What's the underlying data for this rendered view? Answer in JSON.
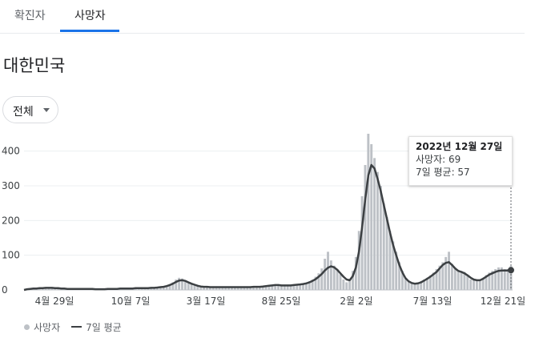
{
  "tabs": [
    {
      "label": "확진자",
      "active": false
    },
    {
      "label": "사망자",
      "active": true
    }
  ],
  "region": "대한민국",
  "filter": {
    "selected": "전체"
  },
  "tooltip": {
    "date": "2022년 12월 27일",
    "deaths": "사망자: 69",
    "avg": "7일 평균: 57"
  },
  "legend": {
    "bars": "사망자",
    "line": "7일 평균"
  },
  "colors": {
    "bar": "#bdc1c6",
    "line": "#3c4043",
    "accent": "#1a73e8"
  },
  "chart_data": {
    "type": "bar",
    "ylim": [
      0,
      450
    ],
    "y_ticks": [
      "0",
      "100",
      "200",
      "300",
      "400"
    ],
    "x_tick_labels": [
      "4월 29일",
      "10월 7일",
      "3월 17일",
      "8월 25일",
      "2월 2일",
      "7월 13일",
      "12월 21일"
    ],
    "series": [
      {
        "name": "사망자",
        "values": [
          0,
          2,
          3,
          4,
          4,
          5,
          6,
          7,
          8,
          6,
          6,
          5,
          4,
          4,
          3,
          3,
          3,
          3,
          3,
          3,
          3,
          3,
          3,
          2,
          2,
          2,
          2,
          3,
          3,
          3,
          4,
          4,
          4,
          4,
          4,
          4,
          5,
          5,
          5,
          5,
          6,
          6,
          7,
          8,
          9,
          11,
          13,
          17,
          22,
          30,
          35,
          33,
          28,
          22,
          17,
          13,
          11,
          10,
          9,
          9,
          8,
          8,
          8,
          8,
          8,
          8,
          8,
          8,
          8,
          8,
          8,
          8,
          8,
          8,
          9,
          9,
          9,
          10,
          11,
          13,
          16,
          15,
          14,
          13,
          12,
          12,
          13,
          14,
          15,
          16,
          18,
          20,
          25,
          30,
          38,
          48,
          62,
          90,
          110,
          85,
          70,
          60,
          45,
          30,
          22,
          28,
          55,
          95,
          170,
          270,
          360,
          450,
          420,
          380,
          340,
          300,
          250,
          210,
          170,
          140,
          110,
          80,
          55,
          35,
          25,
          20,
          18,
          20,
          25,
          30,
          35,
          42,
          50,
          60,
          70,
          80,
          95,
          110,
          75,
          60,
          55,
          55,
          52,
          40,
          30,
          28,
          26,
          28,
          35,
          43,
          50,
          55,
          60,
          65,
          65,
          60,
          60,
          69
        ]
      },
      {
        "name": "7일 평균",
        "values": [
          0,
          2,
          3,
          4,
          4,
          5,
          5,
          6,
          6,
          6,
          5,
          5,
          4,
          4,
          3,
          3,
          3,
          3,
          3,
          3,
          3,
          3,
          3,
          2,
          2,
          2,
          2,
          3,
          3,
          3,
          3,
          4,
          4,
          4,
          4,
          4,
          5,
          5,
          5,
          5,
          5,
          6,
          6,
          7,
          8,
          9,
          11,
          14,
          18,
          23,
          27,
          28,
          26,
          22,
          18,
          15,
          12,
          10,
          9,
          9,
          8,
          8,
          8,
          8,
          8,
          8,
          8,
          8,
          8,
          8,
          8,
          8,
          8,
          8,
          9,
          9,
          9,
          10,
          11,
          12,
          13,
          14,
          14,
          13,
          13,
          13,
          13,
          14,
          15,
          16,
          17,
          19,
          22,
          26,
          31,
          38,
          46,
          56,
          64,
          68,
          65,
          58,
          48,
          38,
          30,
          28,
          40,
          65,
          110,
          180,
          260,
          330,
          360,
          350,
          320,
          285,
          245,
          205,
          165,
          130,
          100,
          72,
          50,
          34,
          25,
          20,
          18,
          19,
          22,
          27,
          32,
          38,
          45,
          52,
          62,
          72,
          78,
          80,
          72,
          62,
          55,
          52,
          48,
          42,
          35,
          30,
          28,
          28,
          32,
          38,
          44,
          48,
          52,
          55,
          56,
          56,
          56,
          57
        ]
      }
    ]
  }
}
